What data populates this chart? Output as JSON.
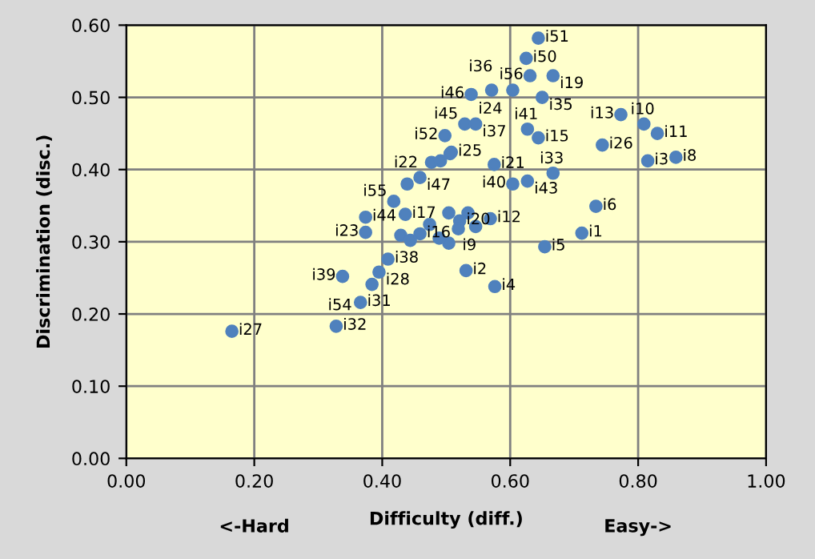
{
  "chart_data": {
    "type": "scatter",
    "xlabel": "Difficulty (diff.)",
    "ylabel": "Discrimination (disc.)",
    "annotations": [
      "<-Hard",
      "Easy->"
    ],
    "x": [
      0.644,
      0.625,
      0.631,
      0.667,
      0.65,
      0.539,
      0.571,
      0.604,
      0.773,
      0.809,
      0.83,
      0.744,
      0.815,
      0.859,
      0.627,
      0.644,
      0.529,
      0.546,
      0.498,
      0.508,
      0.575,
      0.604,
      0.627,
      0.667,
      0.734,
      0.712,
      0.569,
      0.546,
      0.654,
      0.531,
      0.576,
      0.165,
      0.328,
      0.366,
      0.338,
      0.384,
      0.395,
      0.409,
      0.374,
      0.374,
      0.418,
      0.439,
      0.459,
      0.477,
      0.491,
      0.506,
      0.436,
      0.504,
      0.534,
      0.429,
      0.459,
      0.521,
      0.504,
      0.474,
      0.489,
      0.444,
      0.519
    ],
    "values": [
      0.582,
      0.554,
      0.53,
      0.53,
      0.5,
      0.504,
      0.51,
      0.51,
      0.476,
      0.463,
      0.45,
      0.434,
      0.412,
      0.417,
      0.456,
      0.444,
      0.463,
      0.463,
      0.447,
      0.424,
      0.407,
      0.38,
      0.384,
      0.395,
      0.349,
      0.312,
      0.332,
      0.321,
      0.293,
      0.26,
      0.238,
      0.176,
      0.183,
      0.216,
      0.252,
      0.241,
      0.258,
      0.276,
      0.313,
      0.334,
      0.356,
      0.38,
      0.389,
      0.41,
      0.412,
      0.422,
      0.338,
      0.34,
      0.34,
      0.309,
      0.311,
      0.329,
      0.298,
      0.324,
      0.305,
      0.302,
      0.318
    ],
    "value_labels": [
      "i51",
      "i50",
      "i56",
      "i19",
      "i35",
      "i46",
      "i24",
      "i36",
      "i13",
      "i10",
      "i11",
      "i26",
      "i3",
      "i8",
      "i41",
      "i15",
      "i45",
      "i37",
      "i52",
      "i25",
      "i21",
      "i40",
      "i43",
      "i33",
      "i6",
      "i1",
      "i12",
      "i9",
      "i5",
      "i2",
      "i4",
      "i27",
      "i32",
      "i31",
      "i39",
      "i54",
      "i28",
      "i38",
      "i23",
      "i44",
      "i55",
      "i22",
      "i47",
      null,
      null,
      null,
      "i17",
      null,
      null,
      null,
      "i16",
      "i20",
      null,
      null,
      null,
      null,
      null
    ],
    "color": "#4f81bd",
    "marker": "circle",
    "xlim": [
      0,
      1
    ],
    "ylim": [
      0,
      0.6
    ],
    "xticks": [
      {
        "value": 0,
        "label": "0.00"
      },
      {
        "value": 0.2,
        "label": "0.20"
      },
      {
        "value": 0.4,
        "label": "0.40"
      },
      {
        "value": 0.6,
        "label": "0.60"
      },
      {
        "value": 0.8,
        "label": "0.80"
      },
      {
        "value": 1,
        "label": "1.00"
      }
    ],
    "yticks": [
      {
        "value": 0,
        "label": "0.00"
      },
      {
        "value": 0.1,
        "label": "0.10"
      },
      {
        "value": 0.2,
        "label": "0.20"
      },
      {
        "value": 0.3,
        "label": "0.30"
      },
      {
        "value": 0.4,
        "label": "0.40"
      },
      {
        "value": 0.5,
        "label": "0.50"
      },
      {
        "value": 0.6,
        "label": "0.60"
      }
    ],
    "grid": true
  }
}
